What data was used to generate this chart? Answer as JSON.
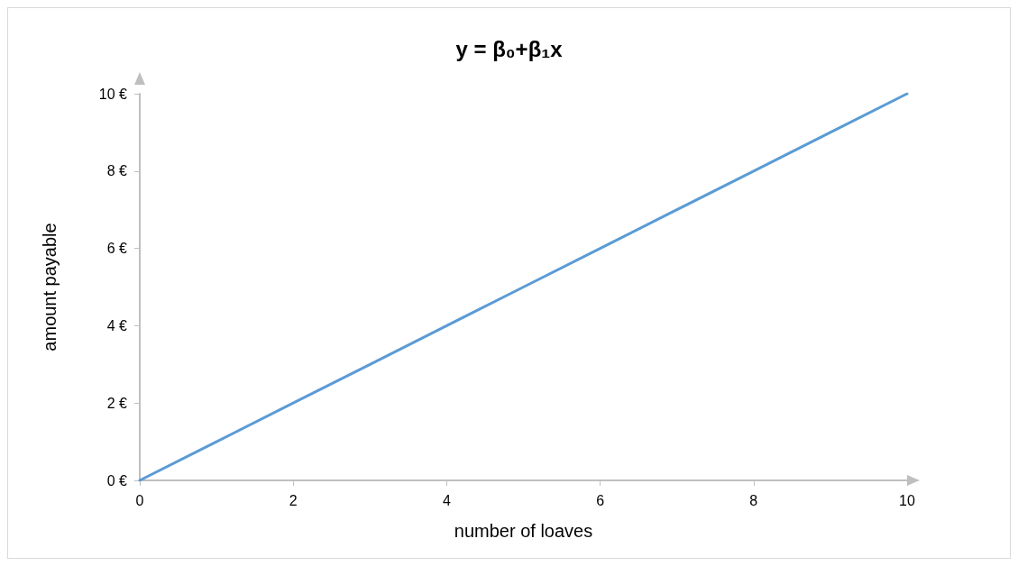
{
  "chart_data": {
    "type": "line",
    "title": "y = β₀+β₁x",
    "xlabel": "number of loaves",
    "ylabel": "amount payable",
    "x": [
      0,
      1,
      2,
      3,
      4,
      5,
      6,
      7,
      8,
      9,
      10
    ],
    "series": [
      {
        "color": "#5b9bd5",
        "values": [
          0,
          1,
          2,
          3,
          4,
          5,
          6,
          7,
          8,
          9,
          10
        ]
      }
    ],
    "xlim": [
      0,
      10
    ],
    "xticks": [
      0,
      2,
      4,
      6,
      8,
      10
    ],
    "ylim": [
      0,
      10
    ],
    "yticks": [
      {
        "value": 0,
        "label": "0 €"
      },
      {
        "value": 2,
        "label": "2 €"
      },
      {
        "value": 4,
        "label": "4 €"
      },
      {
        "value": 6,
        "label": "6 €"
      },
      {
        "value": 8,
        "label": "8 €"
      },
      {
        "value": 10,
        "label": "10 €"
      }
    ],
    "grid": false,
    "marker": "none",
    "line_style": "solid"
  }
}
